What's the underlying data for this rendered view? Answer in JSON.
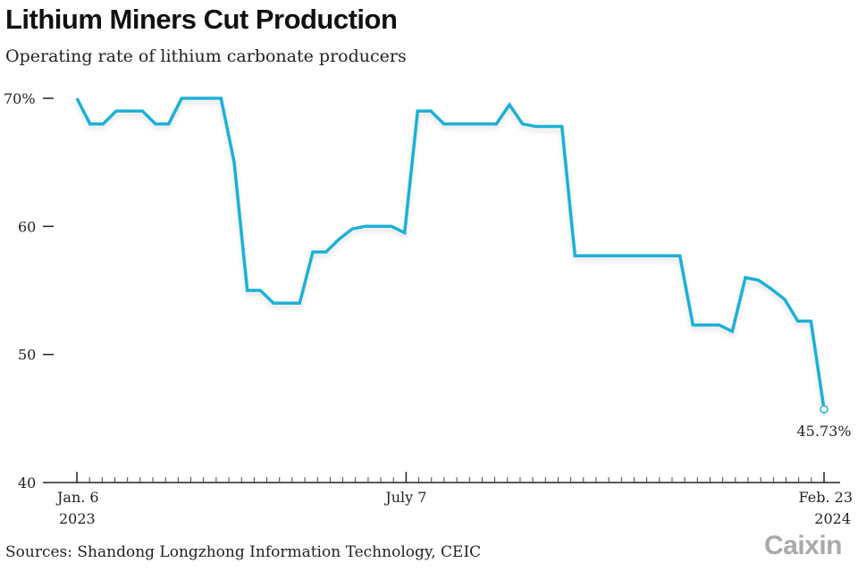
{
  "title": "Lithium Miners Cut Production",
  "subtitle": "Operating rate of lithium carbonate producers",
  "source": "Sources: Shandong Longzhong Information Technology, CEIC",
  "logo": "Caixin",
  "colors": {
    "line": "#1fb0d8",
    "axis": "#222222",
    "logo": "#a9a9a9"
  },
  "chart_data": {
    "type": "line",
    "title": "Lithium Miners Cut Production",
    "subtitle": "Operating rate of lithium carbonate producers",
    "ylabel": "",
    "xlabel": "",
    "ylim": [
      40,
      70
    ],
    "x_range": [
      "2023-01-06",
      "2024-02-23"
    ],
    "frequency": "weekly",
    "y_ticks": [
      {
        "value": 70,
        "label": "70%"
      },
      {
        "value": 60,
        "label": "60"
      },
      {
        "value": 50,
        "label": "50"
      },
      {
        "value": 40,
        "label": "40"
      }
    ],
    "x_ticks": [
      {
        "date": "2023-01-06",
        "label": "Jan. 6",
        "sublabel": "2023"
      },
      {
        "date": "2023-07-07",
        "label": "July 7",
        "sublabel": ""
      },
      {
        "date": "2024-02-23",
        "label": "Feb. 23",
        "sublabel": "2024"
      }
    ],
    "values": [
      70,
      68,
      68,
      69,
      69,
      69,
      68,
      68,
      70,
      70,
      70,
      70,
      65,
      55,
      55,
      54,
      54,
      54,
      58,
      58,
      59,
      59.8,
      60,
      60,
      60,
      59.5,
      69,
      69,
      68,
      68,
      68,
      68,
      68,
      69.5,
      68,
      67.8,
      67.8,
      67.8,
      57.7,
      57.7,
      57.7,
      57.7,
      57.7,
      57.7,
      57.7,
      57.7,
      57.7,
      52.3,
      52.3,
      52.3,
      51.8,
      56,
      55.8,
      55.1,
      54.3,
      52.6,
      52.6,
      45.73
    ],
    "annotation": {
      "label": "45.73%",
      "value": 45.73,
      "at": "last point"
    },
    "grid": false,
    "legend": "none"
  }
}
